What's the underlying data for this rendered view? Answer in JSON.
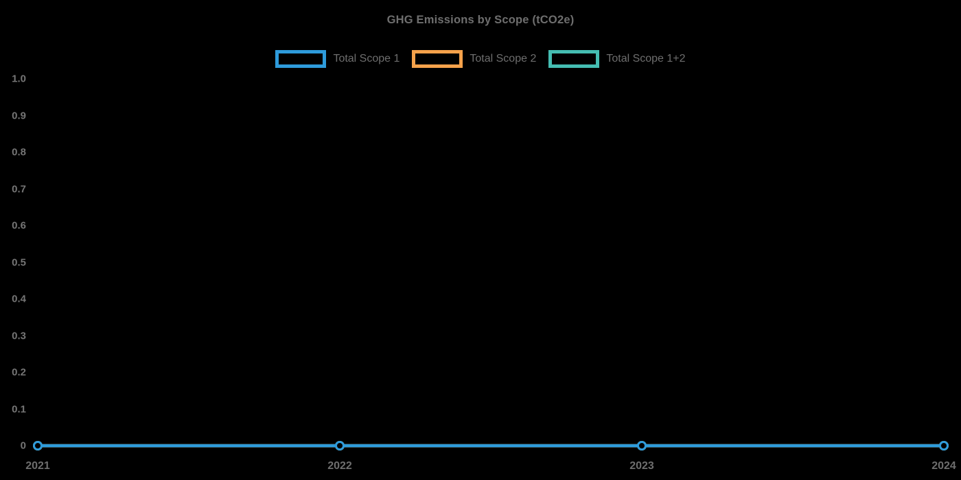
{
  "chart_data": {
    "type": "line",
    "title": "GHG Emissions by Scope (tCO2e)",
    "x": [
      "2021",
      "2022",
      "2023",
      "2024"
    ],
    "series": [
      {
        "name": "Total Scope 1",
        "color": "#2E9BDB",
        "values": [
          0,
          0,
          0,
          0
        ]
      },
      {
        "name": "Total Scope 2",
        "color": "#F6A24B",
        "values": [
          0,
          0,
          0,
          0
        ]
      },
      {
        "name": "Total Scope 1+2",
        "color": "#45BDB2",
        "values": [
          0,
          0,
          0,
          0
        ]
      }
    ],
    "ylim": [
      0,
      1.0
    ],
    "yticks": [
      0,
      0.1,
      0.2,
      0.3,
      0.4,
      0.5,
      0.6,
      0.7,
      0.8,
      0.9,
      1.0
    ],
    "ytick_labels": [
      "0",
      "0.1",
      "0.2",
      "0.3",
      "0.4",
      "0.5",
      "0.6",
      "0.7",
      "0.8",
      "0.9",
      "1.0"
    ],
    "xtick_labels": [
      "2021",
      "2022",
      "2023",
      "2024"
    ],
    "legend_position": "top",
    "grid": false,
    "background_color": "#000000",
    "text_color": "#6E6E6E"
  }
}
